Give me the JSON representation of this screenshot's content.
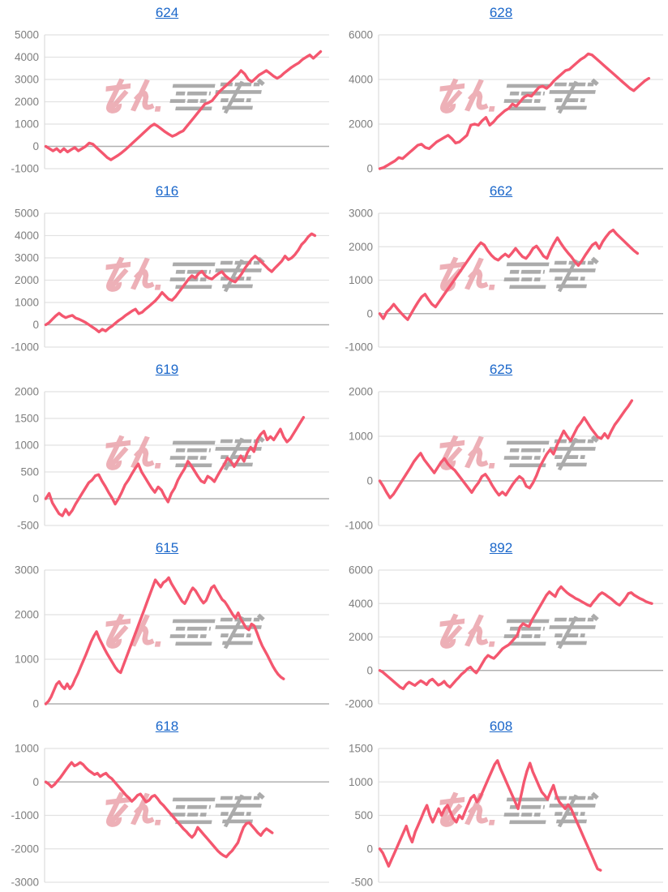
{
  "style": {
    "line_color": "#f4576f",
    "title_link_color": "#1b67ca",
    "tick_label_color": "#7e7e7e",
    "gridline_color": "#e2e2e2",
    "zero_line_color": "#b0b0b0",
    "axis_line_color": "#dcdcdc",
    "watermark_pink": "#eaa3ab",
    "watermark_gray": "#9d9d9d"
  },
  "watermark": {
    "name": "minpachi-logo-watermark",
    "description": "pink and gray stylized logo stamped on every graph"
  },
  "chart_data": [
    {
      "type": "line",
      "title": "624",
      "ylim": [
        -1000,
        5000
      ],
      "yticks": [
        5000,
        4000,
        3000,
        2000,
        1000,
        0,
        -1000
      ],
      "span": 0.97,
      "values": [
        0,
        -100,
        -200,
        -100,
        -250,
        -100,
        -250,
        -150,
        -50,
        -200,
        -100,
        0,
        150,
        100,
        -50,
        -200,
        -350,
        -500,
        -600,
        -500,
        -400,
        -280,
        -150,
        0,
        150,
        300,
        450,
        600,
        750,
        900,
        1000,
        900,
        780,
        650,
        550,
        450,
        520,
        620,
        700,
        900,
        1100,
        1300,
        1500,
        1700,
        1900,
        1960,
        2050,
        2250,
        2450,
        2600,
        2750,
        2900,
        3050,
        3200,
        3400,
        3250,
        3000,
        2900,
        3050,
        3200,
        3300,
        3400,
        3280,
        3150,
        3050,
        3150,
        3300,
        3420,
        3550,
        3650,
        3750,
        3900,
        4000,
        4100,
        3950,
        4100,
        4250
      ]
    },
    {
      "type": "line",
      "title": "628",
      "ylim": [
        0,
        6000
      ],
      "yticks": [
        6000,
        4000,
        2000,
        0
      ],
      "span": 0.95,
      "values": [
        0,
        50,
        150,
        250,
        350,
        500,
        450,
        600,
        750,
        900,
        1050,
        1100,
        950,
        900,
        1050,
        1200,
        1300,
        1400,
        1500,
        1350,
        1150,
        1200,
        1350,
        1500,
        1950,
        2000,
        1950,
        2150,
        2300,
        1950,
        2100,
        2300,
        2450,
        2600,
        2700,
        2900,
        2800,
        3000,
        3200,
        3300,
        3250,
        3450,
        3650,
        3700,
        3600,
        3750,
        3950,
        4100,
        4250,
        4400,
        4450,
        4600,
        4750,
        4900,
        5000,
        5150,
        5100,
        4950,
        4800,
        4650,
        4500,
        4350,
        4200,
        4050,
        3900,
        3750,
        3600,
        3500,
        3650,
        3800,
        3950,
        4050
      ]
    },
    {
      "type": "line",
      "title": "616",
      "ylim": [
        -1000,
        5000
      ],
      "yticks": [
        5000,
        4000,
        3000,
        2000,
        1000,
        0,
        -1000
      ],
      "span": 0.95,
      "values": [
        0,
        100,
        250,
        400,
        520,
        400,
        320,
        380,
        420,
        300,
        250,
        180,
        100,
        0,
        -100,
        -200,
        -320,
        -200,
        -280,
        -150,
        -50,
        80,
        200,
        300,
        420,
        520,
        620,
        700,
        500,
        560,
        700,
        820,
        950,
        1080,
        1250,
        1450,
        1300,
        1150,
        1100,
        1250,
        1450,
        1650,
        1850,
        2050,
        2200,
        2100,
        2300,
        2400,
        2200,
        2100,
        2050,
        2180,
        2300,
        2380,
        2200,
        2080,
        1980,
        1920,
        2100,
        2300,
        2550,
        2750,
        2950,
        3080,
        2950,
        2800,
        2650,
        2500,
        2380,
        2550,
        2700,
        2850,
        3080,
        2920,
        3000,
        3150,
        3350,
        3600,
        3750,
        3950,
        4080,
        4000
      ]
    },
    {
      "type": "line",
      "title": "662",
      "ylim": [
        -1000,
        3000
      ],
      "yticks": [
        3000,
        2000,
        1000,
        0,
        -1000
      ],
      "span": 0.91,
      "values": [
        0,
        -150,
        50,
        150,
        280,
        150,
        30,
        -80,
        -180,
        0,
        180,
        350,
        500,
        580,
        420,
        280,
        200,
        350,
        500,
        650,
        800,
        950,
        1100,
        1250,
        1400,
        1550,
        1700,
        1850,
        2000,
        2120,
        2050,
        1880,
        1750,
        1650,
        1600,
        1700,
        1780,
        1700,
        1820,
        1950,
        1820,
        1700,
        1650,
        1780,
        1950,
        2020,
        1880,
        1720,
        1650,
        1900,
        2100,
        2270,
        2100,
        1950,
        1820,
        1700,
        1550,
        1440,
        1580,
        1750,
        1900,
        2050,
        2120,
        1950,
        2150,
        2300,
        2430,
        2500,
        2380,
        2280,
        2180,
        2080,
        1980,
        1880,
        1800
      ]
    },
    {
      "type": "line",
      "title": "619",
      "ylim": [
        -500,
        2000
      ],
      "yticks": [
        2000,
        1500,
        1000,
        500,
        0,
        -500
      ],
      "span": 0.91,
      "values": [
        0,
        100,
        -80,
        -180,
        -280,
        -320,
        -200,
        -300,
        -220,
        -100,
        0,
        100,
        200,
        300,
        350,
        430,
        450,
        330,
        230,
        120,
        20,
        -100,
        0,
        120,
        260,
        350,
        460,
        560,
        650,
        500,
        400,
        300,
        200,
        120,
        220,
        160,
        40,
        -60,
        100,
        200,
        350,
        460,
        560,
        700,
        620,
        520,
        420,
        330,
        300,
        420,
        380,
        320,
        430,
        540,
        640,
        760,
        700,
        600,
        700,
        800,
        700,
        860,
        960,
        880,
        1100,
        1200,
        1260,
        1100,
        1160,
        1100,
        1200,
        1300,
        1150,
        1060,
        1120,
        1220,
        1320,
        1420,
        1520
      ]
    },
    {
      "type": "line",
      "title": "625",
      "ylim": [
        -1000,
        2000
      ],
      "yticks": [
        2000,
        1000,
        0,
        -1000
      ],
      "span": 0.89,
      "values": [
        0,
        -120,
        -260,
        -380,
        -300,
        -180,
        -60,
        60,
        180,
        300,
        430,
        530,
        620,
        480,
        380,
        280,
        180,
        300,
        420,
        500,
        380,
        300,
        240,
        140,
        40,
        -60,
        -160,
        -260,
        -140,
        -40,
        100,
        150,
        40,
        -100,
        -220,
        -320,
        -250,
        -320,
        -200,
        -80,
        20,
        100,
        40,
        -120,
        -160,
        -40,
        120,
        320,
        460,
        600,
        700,
        600,
        800,
        960,
        1120,
        1000,
        900,
        1050,
        1200,
        1300,
        1420,
        1300,
        1180,
        1080,
        980,
        950,
        1060,
        960,
        1120,
        1260,
        1360,
        1470,
        1580,
        1680,
        1800
      ]
    },
    {
      "type": "line",
      "title": "615",
      "ylim": [
        0,
        3000
      ],
      "yticks": [
        3000,
        2000,
        1000,
        0
      ],
      "span": 0.84,
      "values": [
        0,
        60,
        160,
        300,
        440,
        500,
        400,
        340,
        450,
        340,
        420,
        560,
        680,
        820,
        960,
        1100,
        1250,
        1400,
        1520,
        1620,
        1470,
        1350,
        1230,
        1120,
        1020,
        920,
        820,
        740,
        700,
        860,
        1020,
        1180,
        1340,
        1500,
        1660,
        1820,
        1980,
        2140,
        2300,
        2460,
        2620,
        2780,
        2700,
        2620,
        2720,
        2760,
        2830,
        2700,
        2600,
        2500,
        2400,
        2300,
        2250,
        2360,
        2500,
        2600,
        2540,
        2440,
        2340,
        2260,
        2320,
        2460,
        2600,
        2650,
        2540,
        2440,
        2340,
        2290,
        2200,
        2100,
        2000,
        1920,
        2040,
        1900,
        1800,
        1700,
        1660,
        1790,
        1750,
        1600,
        1440,
        1300,
        1190,
        1080,
        960,
        840,
        740,
        660,
        600,
        560
      ]
    },
    {
      "type": "line",
      "title": "892",
      "ylim": [
        -2000,
        6000
      ],
      "yticks": [
        6000,
        4000,
        2000,
        0,
        -2000
      ],
      "span": 0.96,
      "values": [
        0,
        -100,
        -250,
        -400,
        -550,
        -700,
        -850,
        -1000,
        -1100,
        -850,
        -700,
        -800,
        -900,
        -750,
        -620,
        -720,
        -850,
        -620,
        -520,
        -700,
        -880,
        -800,
        -650,
        -880,
        -1000,
        -800,
        -600,
        -420,
        -220,
        -80,
        100,
        200,
        0,
        -150,
        100,
        400,
        700,
        900,
        800,
        720,
        900,
        1100,
        1300,
        1420,
        1520,
        1700,
        1900,
        2100,
        2600,
        2800,
        2700,
        2620,
        3000,
        3300,
        3600,
        3900,
        4200,
        4500,
        4700,
        4550,
        4420,
        4800,
        5000,
        4820,
        4650,
        4520,
        4420,
        4300,
        4220,
        4120,
        4020,
        3920,
        3850,
        4100,
        4300,
        4520,
        4650,
        4550,
        4420,
        4300,
        4150,
        4000,
        3900,
        4100,
        4320,
        4600,
        4650,
        4500,
        4400,
        4300,
        4220,
        4120,
        4050,
        4000
      ]
    },
    {
      "type": "line",
      "title": "618",
      "ylim": [
        -3000,
        1000
      ],
      "yticks": [
        1000,
        0,
        -1000,
        -2000,
        -3000
      ],
      "span": 0.8,
      "values": [
        0,
        -60,
        -150,
        -80,
        20,
        120,
        240,
        360,
        480,
        580,
        480,
        520,
        580,
        520,
        420,
        340,
        280,
        220,
        260,
        160,
        220,
        260,
        160,
        100,
        0,
        -100,
        -200,
        -300,
        -400,
        -480,
        -580,
        -500,
        -400,
        -360,
        -480,
        -600,
        -550,
        -440,
        -400,
        -500,
        -620,
        -700,
        -800,
        -900,
        -1000,
        -1100,
        -1200,
        -1300,
        -1400,
        -1480,
        -1580,
        -1660,
        -1560,
        -1360,
        -1460,
        -1560,
        -1660,
        -1760,
        -1860,
        -1960,
        -2060,
        -2140,
        -2200,
        -2240,
        -2140,
        -2060,
        -1940,
        -1820,
        -1580,
        -1360,
        -1240,
        -1220,
        -1320,
        -1420,
        -1520,
        -1600,
        -1480,
        -1400,
        -1460,
        -1520
      ]
    },
    {
      "type": "line",
      "title": "608",
      "ylim": [
        -500,
        1500
      ],
      "yticks": [
        1500,
        1000,
        500,
        0,
        -500
      ],
      "span": 0.78,
      "values": [
        0,
        -60,
        -160,
        -260,
        -160,
        -60,
        40,
        140,
        240,
        340,
        200,
        100,
        250,
        350,
        450,
        560,
        650,
        500,
        400,
        500,
        600,
        500,
        600,
        650,
        550,
        450,
        400,
        500,
        450,
        560,
        660,
        760,
        800,
        700,
        760,
        860,
        960,
        1060,
        1160,
        1260,
        1320,
        1200,
        1100,
        1000,
        900,
        800,
        700,
        600,
        800,
        1000,
        1160,
        1280,
        1150,
        1050,
        950,
        850,
        800,
        740,
        850,
        950,
        800,
        700,
        650,
        600,
        660,
        600,
        500,
        400,
        300,
        200,
        100,
        0,
        -100,
        -200,
        -300,
        -320
      ]
    }
  ]
}
